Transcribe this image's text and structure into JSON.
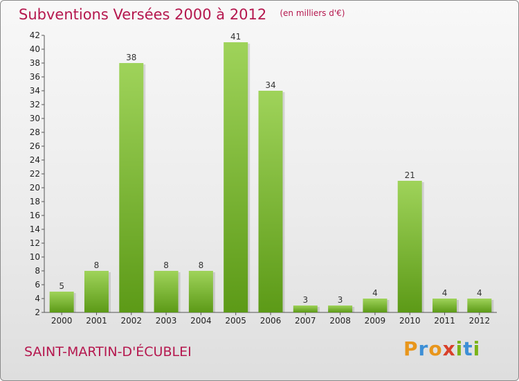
{
  "chart_data": {
    "type": "bar",
    "title": "Subventions Versées 2000 à 2012",
    "subtitle": "(en milliers d'€)",
    "categories": [
      "2000",
      "2001",
      "2002",
      "2003",
      "2004",
      "2005",
      "2006",
      "2007",
      "2008",
      "2009",
      "2010",
      "2011",
      "2012"
    ],
    "values": [
      5,
      8,
      38,
      8,
      8,
      41,
      34,
      3,
      3,
      4,
      21,
      4,
      4
    ],
    "ylim": [
      2,
      42
    ],
    "yticks": [
      2,
      4,
      6,
      8,
      10,
      12,
      14,
      16,
      18,
      20,
      22,
      24,
      26,
      28,
      30,
      32,
      34,
      36,
      38,
      40,
      42
    ],
    "grid": false,
    "bar_colors": {
      "light": "#9fd35a",
      "dark": "#5c9a17"
    }
  },
  "commune": "SAINT-MARTIN-D'ÉCUBLEI",
  "logo": {
    "letters": [
      "P",
      "r",
      "o",
      "x",
      "i",
      "t",
      "i"
    ],
    "colors": [
      "#e8961c",
      "#3d8fd6",
      "#e8961c",
      "#d8402a",
      "#7ab317",
      "#3d8fd6",
      "#7ab317"
    ]
  },
  "colors": {
    "accent": "#b5174e"
  }
}
